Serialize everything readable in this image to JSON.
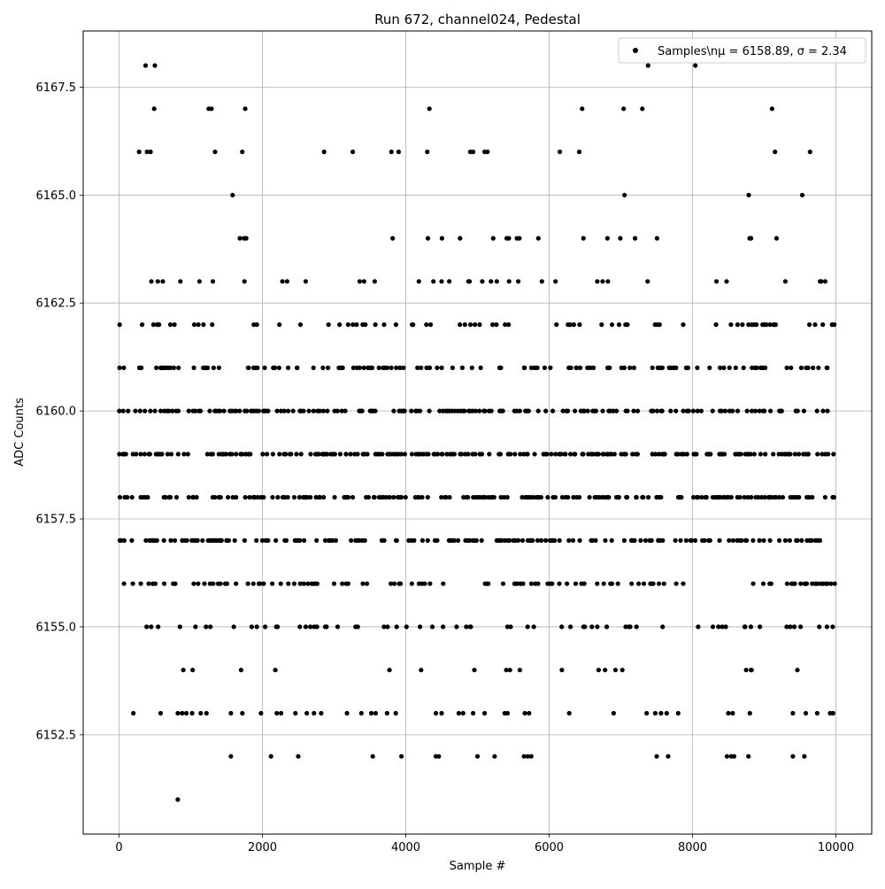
{
  "chart_data": {
    "type": "scatter",
    "title": "Run 672, channel024, Pedestal",
    "xlabel": "Sample #",
    "ylabel": "ADC Counts",
    "xlim": [
      -500,
      10500
    ],
    "ylim": [
      6150.2,
      6168.8
    ],
    "xticks": [
      0,
      2000,
      4000,
      6000,
      8000,
      10000
    ],
    "yticks": [
      6152.5,
      6155.0,
      6157.5,
      6160.0,
      6162.5,
      6165.0,
      6167.5
    ],
    "xtick_labels": [
      "0",
      "2000",
      "4000",
      "6000",
      "8000",
      "10000"
    ],
    "ytick_labels": [
      "6152.5",
      "6155.0",
      "6157.5",
      "6160.0",
      "6162.5",
      "6165.0",
      "6167.5"
    ],
    "grid": true,
    "legend_position": "top-right",
    "marker_color": "#000000",
    "series": [
      {
        "name": "Samples\\nμ = 6158.89, σ = 2.34",
        "points": [
          [
            820,
            6151
          ],
          [
            1560,
            6152
          ],
          [
            2120,
            6152
          ],
          [
            2500,
            6152
          ],
          [
            3540,
            6152
          ],
          [
            3940,
            6152
          ],
          [
            4420,
            6152
          ],
          [
            4460,
            6152
          ],
          [
            5000,
            6152
          ],
          [
            5240,
            6152
          ],
          [
            5650,
            6152
          ],
          [
            5700,
            6152
          ],
          [
            5750,
            6152
          ],
          [
            7500,
            6152
          ],
          [
            7660,
            6152
          ],
          [
            8480,
            6152
          ],
          [
            8540,
            6152
          ],
          [
            8580,
            6152
          ],
          [
            8780,
            6152
          ],
          [
            9400,
            6152
          ],
          [
            9560,
            6152
          ],
          [
            200,
            6153
          ],
          [
            580,
            6153
          ],
          [
            820,
            6153
          ],
          [
            880,
            6153
          ],
          [
            940,
            6153
          ],
          [
            1020,
            6153
          ],
          [
            1140,
            6153
          ],
          [
            1220,
            6153
          ],
          [
            1560,
            6153
          ],
          [
            1720,
            6153
          ],
          [
            1980,
            6153
          ],
          [
            2200,
            6153
          ],
          [
            2260,
            6153
          ],
          [
            2460,
            6153
          ],
          [
            2620,
            6153
          ],
          [
            2720,
            6153
          ],
          [
            2820,
            6153
          ],
          [
            3180,
            6153
          ],
          [
            3380,
            6153
          ],
          [
            3520,
            6153
          ],
          [
            3580,
            6153
          ],
          [
            3740,
            6153
          ],
          [
            3860,
            6153
          ],
          [
            4420,
            6153
          ],
          [
            4500,
            6153
          ],
          [
            4740,
            6153
          ],
          [
            4800,
            6153
          ],
          [
            4940,
            6153
          ],
          [
            5100,
            6153
          ],
          [
            5380,
            6153
          ],
          [
            5420,
            6153
          ],
          [
            5660,
            6153
          ],
          [
            5720,
            6153
          ],
          [
            6280,
            6153
          ],
          [
            6900,
            6153
          ],
          [
            7360,
            6153
          ],
          [
            7480,
            6153
          ],
          [
            7560,
            6153
          ],
          [
            7640,
            6153
          ],
          [
            7800,
            6153
          ],
          [
            8500,
            6153
          ],
          [
            8560,
            6153
          ],
          [
            8800,
            6153
          ],
          [
            9400,
            6153
          ],
          [
            9580,
            6153
          ],
          [
            9740,
            6153
          ],
          [
            9920,
            6153
          ],
          [
            9960,
            6153
          ],
          [
            7380,
            6168
          ],
          [
            8040,
            6168
          ],
          [
            370,
            6168
          ],
          [
            500,
            6168
          ],
          [
            490,
            6167
          ],
          [
            1250,
            6167
          ],
          [
            1290,
            6167
          ],
          [
            1760,
            6167
          ],
          [
            4330,
            6167
          ],
          [
            6460,
            6167
          ],
          [
            7040,
            6167
          ],
          [
            7300,
            6167
          ],
          [
            9110,
            6167
          ],
          [
            280,
            6166
          ],
          [
            390,
            6166
          ],
          [
            440,
            6166
          ],
          [
            1340,
            6166
          ],
          [
            1720,
            6166
          ],
          [
            2860,
            6166
          ],
          [
            3260,
            6166
          ],
          [
            3800,
            6166
          ],
          [
            3900,
            6166
          ],
          [
            4300,
            6166
          ],
          [
            4900,
            6166
          ],
          [
            4940,
            6166
          ],
          [
            5100,
            6166
          ],
          [
            5140,
            6166
          ],
          [
            6150,
            6166
          ],
          [
            6420,
            6166
          ],
          [
            9150,
            6166
          ],
          [
            9640,
            6166
          ]
        ]
      }
    ]
  }
}
